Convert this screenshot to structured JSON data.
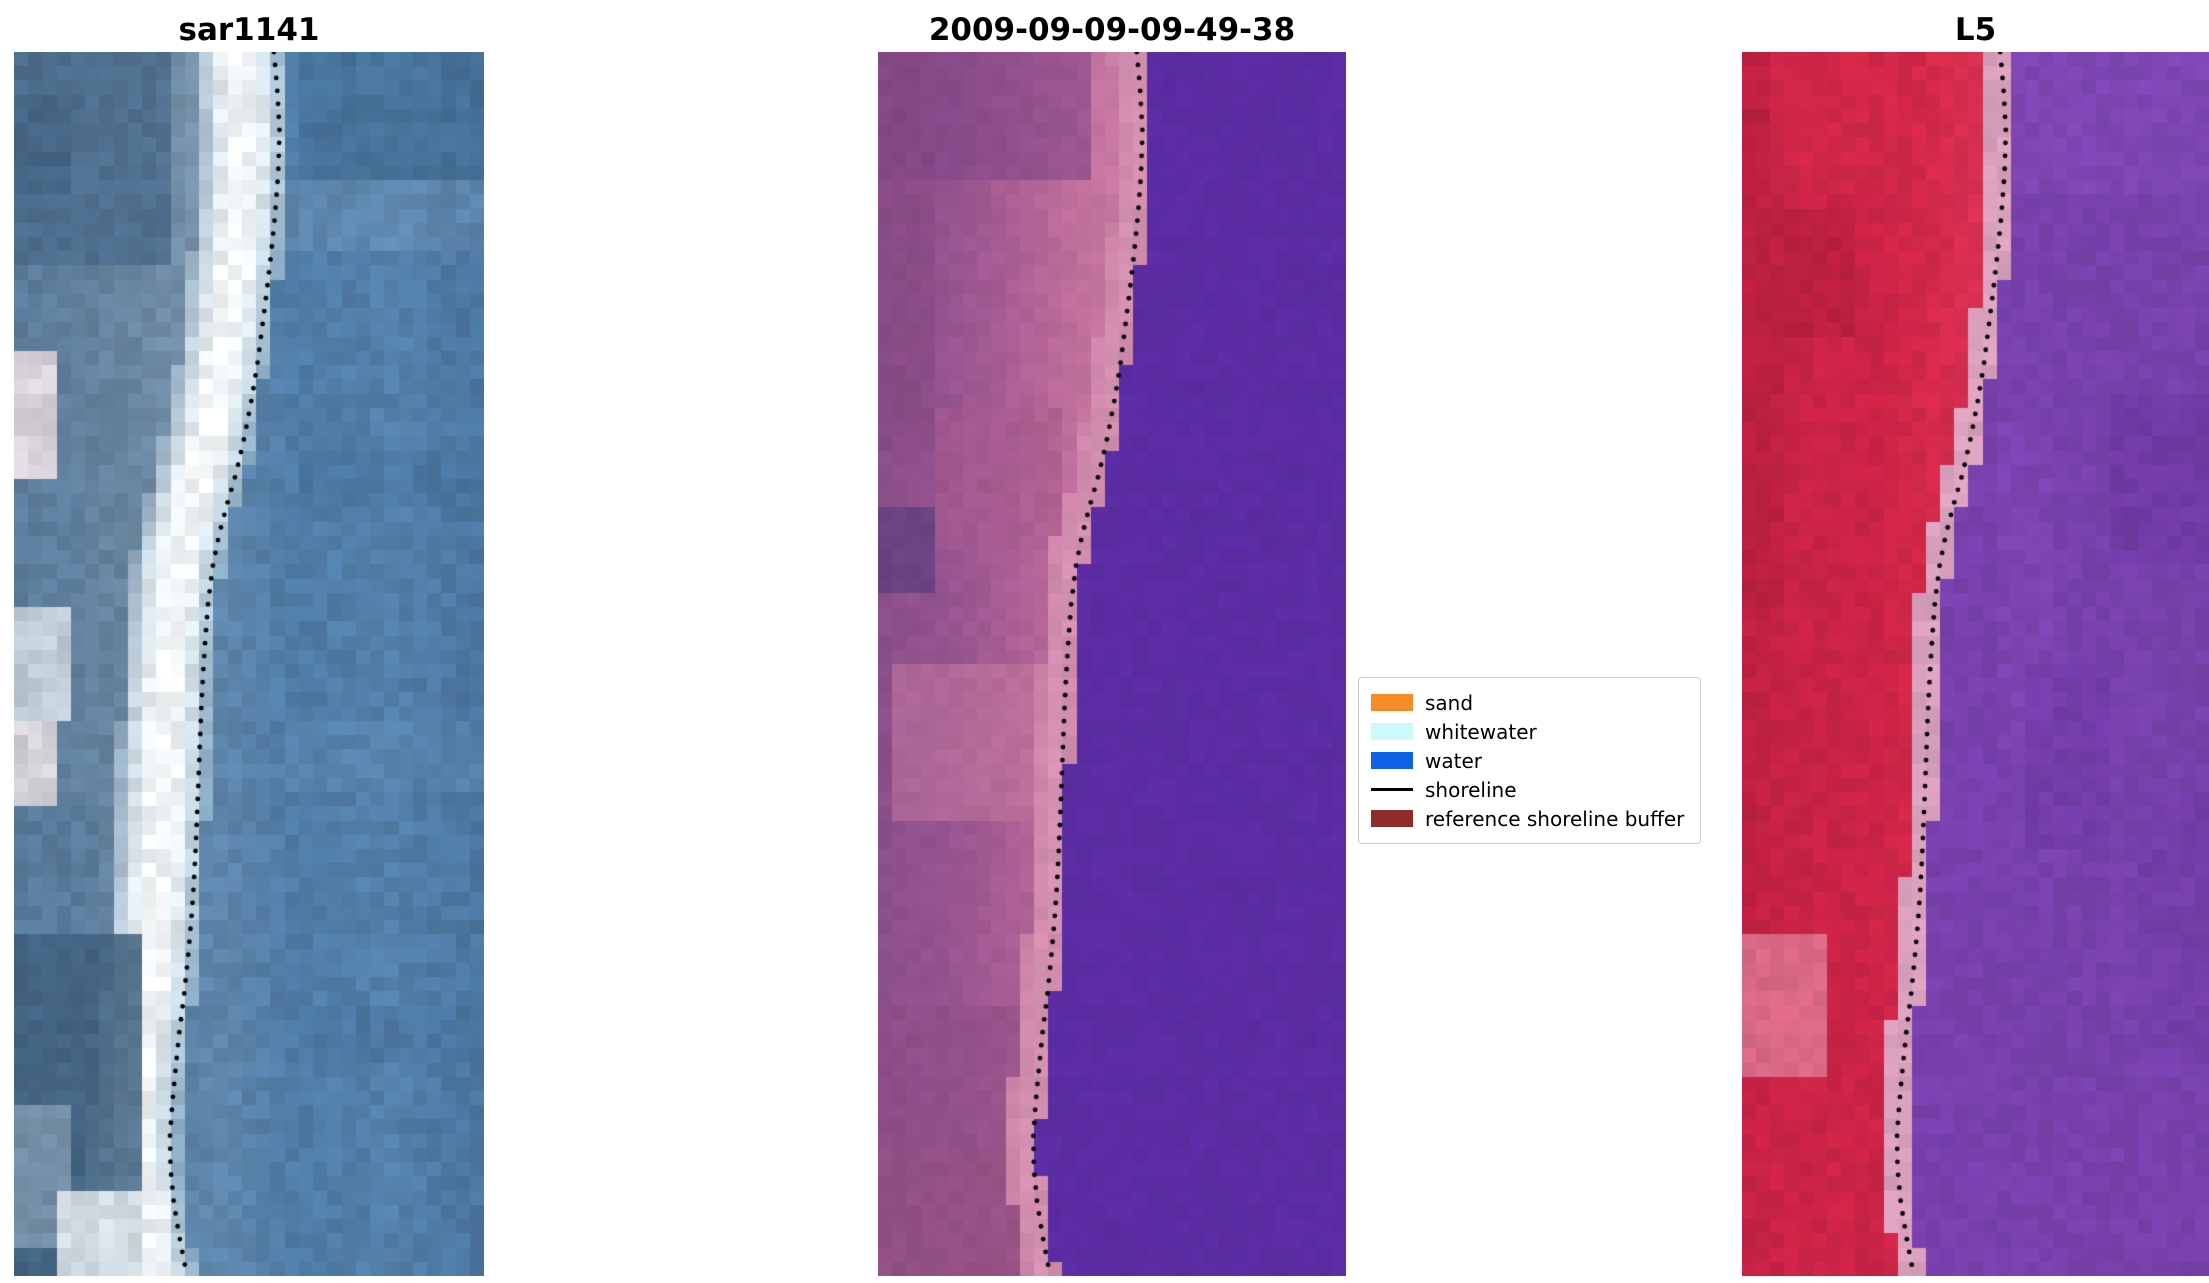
{
  "chart_data": {
    "type": "image-panels",
    "description": "Three-panel shoreline mapping figure: SAR image, classified image, and Landsat 5 image with a dotted shoreline overlaid on each, plus a classification legend.",
    "panels": [
      {
        "title": "sar1141",
        "kind": "sar-image",
        "lowres": [
          33,
          86
        ],
        "land_offset": 0.0,
        "ops": [
          {
            "op": "fill",
            "grad": [
              [
                0,
                "#54789a"
              ],
              [
                0.45,
                "#5e86ab"
              ],
              [
                0.6,
                "#4f7ca6"
              ],
              [
                0.8,
                "#5480aa"
              ],
              [
                1,
                "#4b76a0"
              ]
            ]
          },
          {
            "op": "land",
            "offset": 0.0,
            "grad": [
              [
                0,
                "#5a7c9b"
              ],
              [
                0.25,
                "#68869f"
              ],
              [
                0.45,
                "#7e98b0"
              ],
              [
                0.55,
                "#8aa2b8"
              ]
            ]
          },
          {
            "op": "band",
            "from": -0.17,
            "to": 0.02,
            "grad": [
              [
                0,
                "#93abc0"
              ],
              [
                0.2,
                "#d8e3ea"
              ],
              [
                0.4,
                "#f6f9fa"
              ],
              [
                0.65,
                "#f2f6f8"
              ],
              [
                0.85,
                "#c2d6e2"
              ],
              [
                1,
                "#86a8c2"
              ]
            ]
          },
          {
            "op": "rect",
            "x": 0,
            "y": 0,
            "w": 0.32,
            "h": 0.17,
            "color": "#4a6b8b",
            "alpha": 0.8
          },
          {
            "op": "rect",
            "x": 0,
            "y": 0.03,
            "w": 0.13,
            "h": 0.09,
            "color": "#41617f",
            "alpha": 0.7
          },
          {
            "op": "rect",
            "x": 0,
            "y": 0.245,
            "w": 0.1,
            "h": 0.1,
            "color": "#e7dce0",
            "alpha": 0.9
          },
          {
            "op": "rect",
            "x": 0,
            "y": 0.36,
            "w": 0.15,
            "h": 0.08,
            "color": "#5d7f9e",
            "alpha": 0.75
          },
          {
            "op": "rect",
            "x": 0,
            "y": 0.455,
            "w": 0.13,
            "h": 0.09,
            "color": "#cfdae2",
            "alpha": 0.85
          },
          {
            "op": "rect",
            "x": 0,
            "y": 0.545,
            "w": 0.09,
            "h": 0.07,
            "color": "#e9dfe3",
            "alpha": 0.85
          },
          {
            "op": "rect",
            "x": 0,
            "y": 0.62,
            "w": 0.17,
            "h": 0.1,
            "color": "#567a9a",
            "alpha": 0.7
          },
          {
            "op": "rect",
            "x": 0,
            "y": 0.72,
            "w": 0.27,
            "h": 0.28,
            "color": "#3f607e",
            "alpha": 0.85
          },
          {
            "op": "rect",
            "x": 0,
            "y": 0.86,
            "w": 0.11,
            "h": 0.12,
            "color": "#7e96ac",
            "alpha": 0.8
          },
          {
            "op": "rect",
            "x": 0.1,
            "y": 0.93,
            "w": 0.24,
            "h": 0.07,
            "color": "#e8eef2",
            "alpha": 0.85
          },
          {
            "op": "rect",
            "x": 0.62,
            "y": 0,
            "w": 0.38,
            "h": 0.1,
            "color": "#3f6a8e",
            "alpha": 0.55
          },
          {
            "op": "rect",
            "x": 0.57,
            "y": 0.1,
            "w": 0.43,
            "h": 0.06,
            "color": "#6d94b6",
            "alpha": 0.45
          },
          {
            "op": "rect",
            "x": 0.6,
            "y": 0.32,
            "w": 0.4,
            "h": 0.05,
            "color": "#45709a",
            "alpha": 0.4
          },
          {
            "op": "rect",
            "x": 0.58,
            "y": 0.55,
            "w": 0.42,
            "h": 0.06,
            "color": "#5e89b0",
            "alpha": 0.4
          },
          {
            "op": "rect",
            "x": 0.6,
            "y": 0.78,
            "w": 0.4,
            "h": 0.05,
            "color": "#46719b",
            "alpha": 0.4
          },
          {
            "op": "noise",
            "amp": 0.07,
            "seed": 3
          }
        ]
      },
      {
        "title": "2009-09-09-09-49-38",
        "kind": "classified-image",
        "lowres": [
          33,
          86
        ],
        "land_offset": 0.015,
        "ops": [
          {
            "op": "fill",
            "grad": [
              [
                0,
                "#5b2ca3"
              ],
              [
                1,
                "#5b2ca3"
              ]
            ]
          },
          {
            "op": "land",
            "offset": 0.015,
            "grad": [
              [
                0,
                "#8a4e8b"
              ],
              [
                0.15,
                "#965490"
              ],
              [
                0.3,
                "#ad6094"
              ],
              [
                0.42,
                "#bf6f9b"
              ],
              [
                0.52,
                "#c87aa1"
              ]
            ]
          },
          {
            "op": "band",
            "from": -0.055,
            "to": 0.015,
            "grad": [
              [
                0,
                "#cd84a8"
              ],
              [
                0.6,
                "#d592b2"
              ],
              [
                1,
                "#d08cae"
              ]
            ]
          },
          {
            "op": "rect",
            "x": 0,
            "y": 0,
            "w": 0.45,
            "h": 0.1,
            "color": "#7c4386",
            "alpha": 0.55,
            "clip": -0.055
          },
          {
            "op": "rect",
            "x": 0,
            "y": 0,
            "w": 0.13,
            "h": 0.32,
            "color": "#84477f",
            "alpha": 0.45,
            "clip": -0.055
          },
          {
            "op": "rect",
            "x": 0,
            "y": 0.37,
            "w": 0.11,
            "h": 0.07,
            "color": "#64407f",
            "alpha": 0.85,
            "clip": -0.055
          },
          {
            "op": "rect",
            "x": 0.12,
            "y": 0.29,
            "w": 0.26,
            "h": 0.12,
            "color": "#a75a8b",
            "alpha": 0.45,
            "clip": -0.055
          },
          {
            "op": "rect",
            "x": 0.04,
            "y": 0.5,
            "w": 0.32,
            "h": 0.13,
            "color": "#c77c9e",
            "alpha": 0.5,
            "clip": -0.055
          },
          {
            "op": "rect",
            "x": 0,
            "y": 0.78,
            "w": 0.4,
            "h": 0.22,
            "color": "#8d4c85",
            "alpha": 0.55,
            "clip": -0.055
          },
          {
            "op": "rect",
            "x": 0,
            "y": 0.9,
            "w": 0.3,
            "h": 0.1,
            "color": "#95527f",
            "alpha": 0.5,
            "clip": -0.055
          },
          {
            "op": "noise",
            "amp": 0.035,
            "seed": 11
          }
        ]
      },
      {
        "title": "L5",
        "kind": "landsat5-image",
        "lowres": [
          33,
          86
        ],
        "land_offset": 0.02,
        "ops": [
          {
            "op": "fill",
            "grad": [
              [
                0,
                "#7a3fae"
              ],
              [
                1,
                "#7742ab"
              ]
            ]
          },
          {
            "op": "rect",
            "x": 0.55,
            "y": 0,
            "w": 0.45,
            "h": 0.12,
            "color": "#8a4fc0",
            "alpha": 0.35
          },
          {
            "op": "rect",
            "x": 0.78,
            "y": 0.28,
            "w": 0.22,
            "h": 0.14,
            "color": "#6a34a0",
            "alpha": 0.5
          },
          {
            "op": "rect",
            "x": 0.55,
            "y": 0.3,
            "w": 0.12,
            "h": 0.28,
            "color": "#8748ba",
            "alpha": 0.35
          },
          {
            "op": "rect",
            "x": 0.6,
            "y": 0.5,
            "w": 0.2,
            "h": 0.15,
            "color": "#6f38a5",
            "alpha": 0.45
          },
          {
            "op": "rect",
            "x": 0.85,
            "y": 0.6,
            "w": 0.15,
            "h": 0.22,
            "color": "#7039a6",
            "alpha": 0.4
          },
          {
            "op": "rect",
            "x": 0.6,
            "y": 0.85,
            "w": 0.4,
            "h": 0.15,
            "color": "#7b40ad",
            "alpha": 0.4
          },
          {
            "op": "land",
            "offset": 0.02,
            "grad": [
              [
                0,
                "#d9a0bd"
              ],
              [
                1,
                "#d9a0bd"
              ]
            ]
          },
          {
            "op": "land",
            "offset": -0.035,
            "grad": [
              [
                0,
                "#bf2042"
              ],
              [
                0.12,
                "#c92347"
              ],
              [
                0.28,
                "#cb2346"
              ],
              [
                0.42,
                "#d52a4b"
              ],
              [
                0.52,
                "#d93154"
              ]
            ]
          },
          {
            "op": "rect",
            "x": 0,
            "y": 0.05,
            "w": 0.1,
            "h": 0.42,
            "color": "#b51f3f",
            "alpha": 0.5,
            "clip": -0.035
          },
          {
            "op": "rect",
            "x": 0.05,
            "y": 0,
            "w": 0.27,
            "h": 0.12,
            "color": "#d62a4a",
            "alpha": 0.5,
            "clip": -0.035
          },
          {
            "op": "rect",
            "x": 0.1,
            "y": 0.13,
            "w": 0.13,
            "h": 0.1,
            "color": "#a81c3a",
            "alpha": 0.45,
            "clip": -0.035
          },
          {
            "op": "rect",
            "x": 0,
            "y": 0.72,
            "w": 0.18,
            "h": 0.12,
            "color": "#e287a0",
            "alpha": 0.7,
            "clip": -0.035
          },
          {
            "op": "rect",
            "x": 0,
            "y": 0.84,
            "w": 0.3,
            "h": 0.16,
            "color": "#cc2446",
            "alpha": 0.55,
            "clip": -0.035
          },
          {
            "op": "noise",
            "amp": 0.05,
            "seed": 23
          }
        ]
      }
    ],
    "shoreline_norm": [
      [
        0.553,
        0.0
      ],
      [
        0.56,
        0.03
      ],
      [
        0.565,
        0.065
      ],
      [
        0.562,
        0.1
      ],
      [
        0.555,
        0.135
      ],
      [
        0.547,
        0.165
      ],
      [
        0.538,
        0.195
      ],
      [
        0.528,
        0.225
      ],
      [
        0.518,
        0.255
      ],
      [
        0.505,
        0.285
      ],
      [
        0.49,
        0.315
      ],
      [
        0.472,
        0.345
      ],
      [
        0.453,
        0.37
      ],
      [
        0.436,
        0.395
      ],
      [
        0.423,
        0.42
      ],
      [
        0.413,
        0.45
      ],
      [
        0.407,
        0.48
      ],
      [
        0.402,
        0.51
      ],
      [
        0.398,
        0.54
      ],
      [
        0.395,
        0.57
      ],
      [
        0.392,
        0.6
      ],
      [
        0.389,
        0.628
      ],
      [
        0.386,
        0.655
      ],
      [
        0.382,
        0.683
      ],
      [
        0.377,
        0.71
      ],
      [
        0.37,
        0.74
      ],
      [
        0.362,
        0.77
      ],
      [
        0.352,
        0.8
      ],
      [
        0.344,
        0.83
      ],
      [
        0.337,
        0.858
      ],
      [
        0.332,
        0.885
      ],
      [
        0.333,
        0.912
      ],
      [
        0.34,
        0.94
      ],
      [
        0.352,
        0.968
      ],
      [
        0.368,
        1.0
      ]
    ],
    "shoreline_style": {
      "color": "#000000",
      "dot_radius_px": 2.4,
      "spacing_px": 13
    },
    "legend": {
      "entries": [
        {
          "label": "sand",
          "type": "patch",
          "color": "#f78b29"
        },
        {
          "label": "whitewater",
          "type": "patch",
          "color": "#ccf9ff"
        },
        {
          "label": "water",
          "type": "patch",
          "color": "#0c63e8"
        },
        {
          "label": "shoreline",
          "type": "line",
          "color": "#000000"
        },
        {
          "label": "reference shoreline buffer",
          "type": "patch",
          "color": "#8e2c2c"
        }
      ]
    }
  }
}
